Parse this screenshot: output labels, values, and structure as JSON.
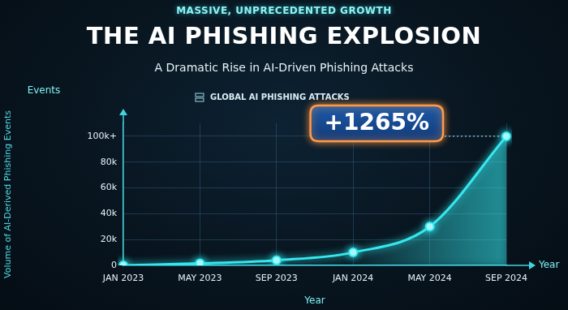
{
  "chart_data": {
    "type": "line",
    "header": "MASSIVE, UNPRECEDENTED GROWTH",
    "title": "THE AI PHISHING EXPLOSION",
    "subtitle": "A Dramatic Rise in AI-Driven Phishing Attacks",
    "annotation": "+1265%",
    "x_label": "Year",
    "x_end_label": "Year",
    "y_label": "Volume of AI-Derived Phishing Events",
    "y_end_label": "Events",
    "categories": [
      "JAN 2023",
      "MAY 2023",
      "SEP 2023",
      "JAN 2024",
      "MAY 2024",
      "SEP 2024"
    ],
    "series": [
      {
        "name": "GLOBAL AI PHISHING ATTACKS",
        "color": "#35e8ef",
        "marker": "circle",
        "values": [
          0,
          1500,
          4000,
          10000,
          30000,
          100000
        ]
      }
    ],
    "ylim": [
      0,
      110000
    ],
    "yticks": [
      0,
      {
        "value": 20000,
        "label": "20k"
      },
      {
        "value": 40000,
        "label": "40k"
      },
      {
        "value": 60000,
        "label": "60k"
      },
      {
        "value": 80000,
        "label": "80k"
      },
      {
        "value": 100000,
        "label": "100k+"
      }
    ],
    "grid": true,
    "legend": "top"
  }
}
